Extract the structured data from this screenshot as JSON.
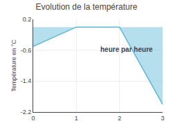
{
  "chart_data": {
    "type": "area",
    "title": "Evolution de la température",
    "ylabel": "Température en °C",
    "annotations": [
      "heure par heure"
    ],
    "x": [
      0,
      1,
      2,
      3
    ],
    "values": [
      -0.5,
      0.0,
      0.0,
      -2.0
    ],
    "color": "#5ab8d4",
    "xlim": [
      0,
      3
    ],
    "xticks": [
      0,
      1,
      2,
      3
    ],
    "ylim": [
      -2.2,
      0.2
    ],
    "yticks": [
      0.2,
      -0.6,
      -1.4,
      -2.2
    ],
    "grid": true
  }
}
